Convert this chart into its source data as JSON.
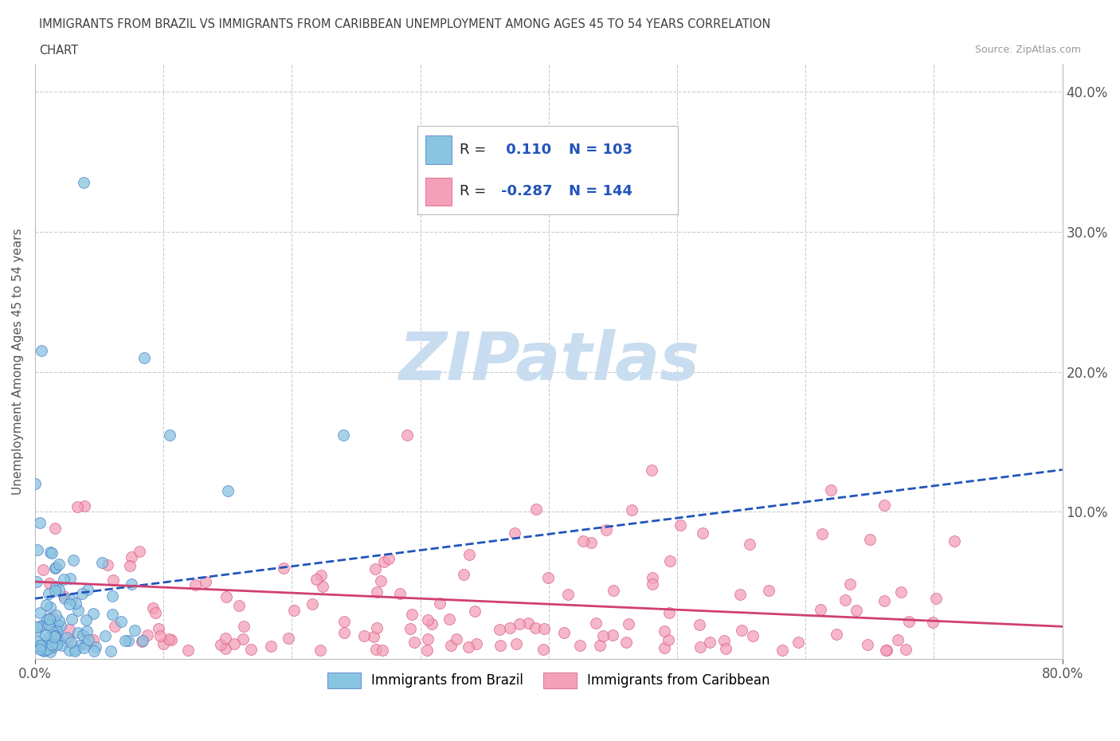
{
  "title_line1": "IMMIGRANTS FROM BRAZIL VS IMMIGRANTS FROM CARIBBEAN UNEMPLOYMENT AMONG AGES 45 TO 54 YEARS CORRELATION",
  "title_line2": "CHART",
  "source_text": "Source: ZipAtlas.com",
  "ylabel": "Unemployment Among Ages 45 to 54 years",
  "xlim": [
    0.0,
    0.8
  ],
  "ylim": [
    -0.005,
    0.42
  ],
  "brazil_color": "#89c4e1",
  "brazil_edge_color": "#4472c4",
  "caribbean_color": "#f4a0b8",
  "caribbean_edge_color": "#d45080",
  "brazil_R": 0.11,
  "brazil_N": 103,
  "caribbean_R": -0.287,
  "caribbean_N": 144,
  "brazil_trend_color": "#2255bb",
  "caribbean_trend_color": "#d04070",
  "watermark_color": "#c8ddf0",
  "background_color": "#ffffff",
  "grid_color": "#cccccc",
  "title_color": "#404040",
  "tick_color": "#4472c4",
  "ytick_values": [
    0.1,
    0.2,
    0.3,
    0.4
  ],
  "ytick_labels": [
    "10.0%",
    "20.0%",
    "30.0%",
    "40.0%"
  ],
  "brazil_trend_start_y": 0.038,
  "brazil_trend_end_y": 0.13,
  "caribbean_trend_start_y": 0.05,
  "caribbean_trend_end_y": 0.018
}
